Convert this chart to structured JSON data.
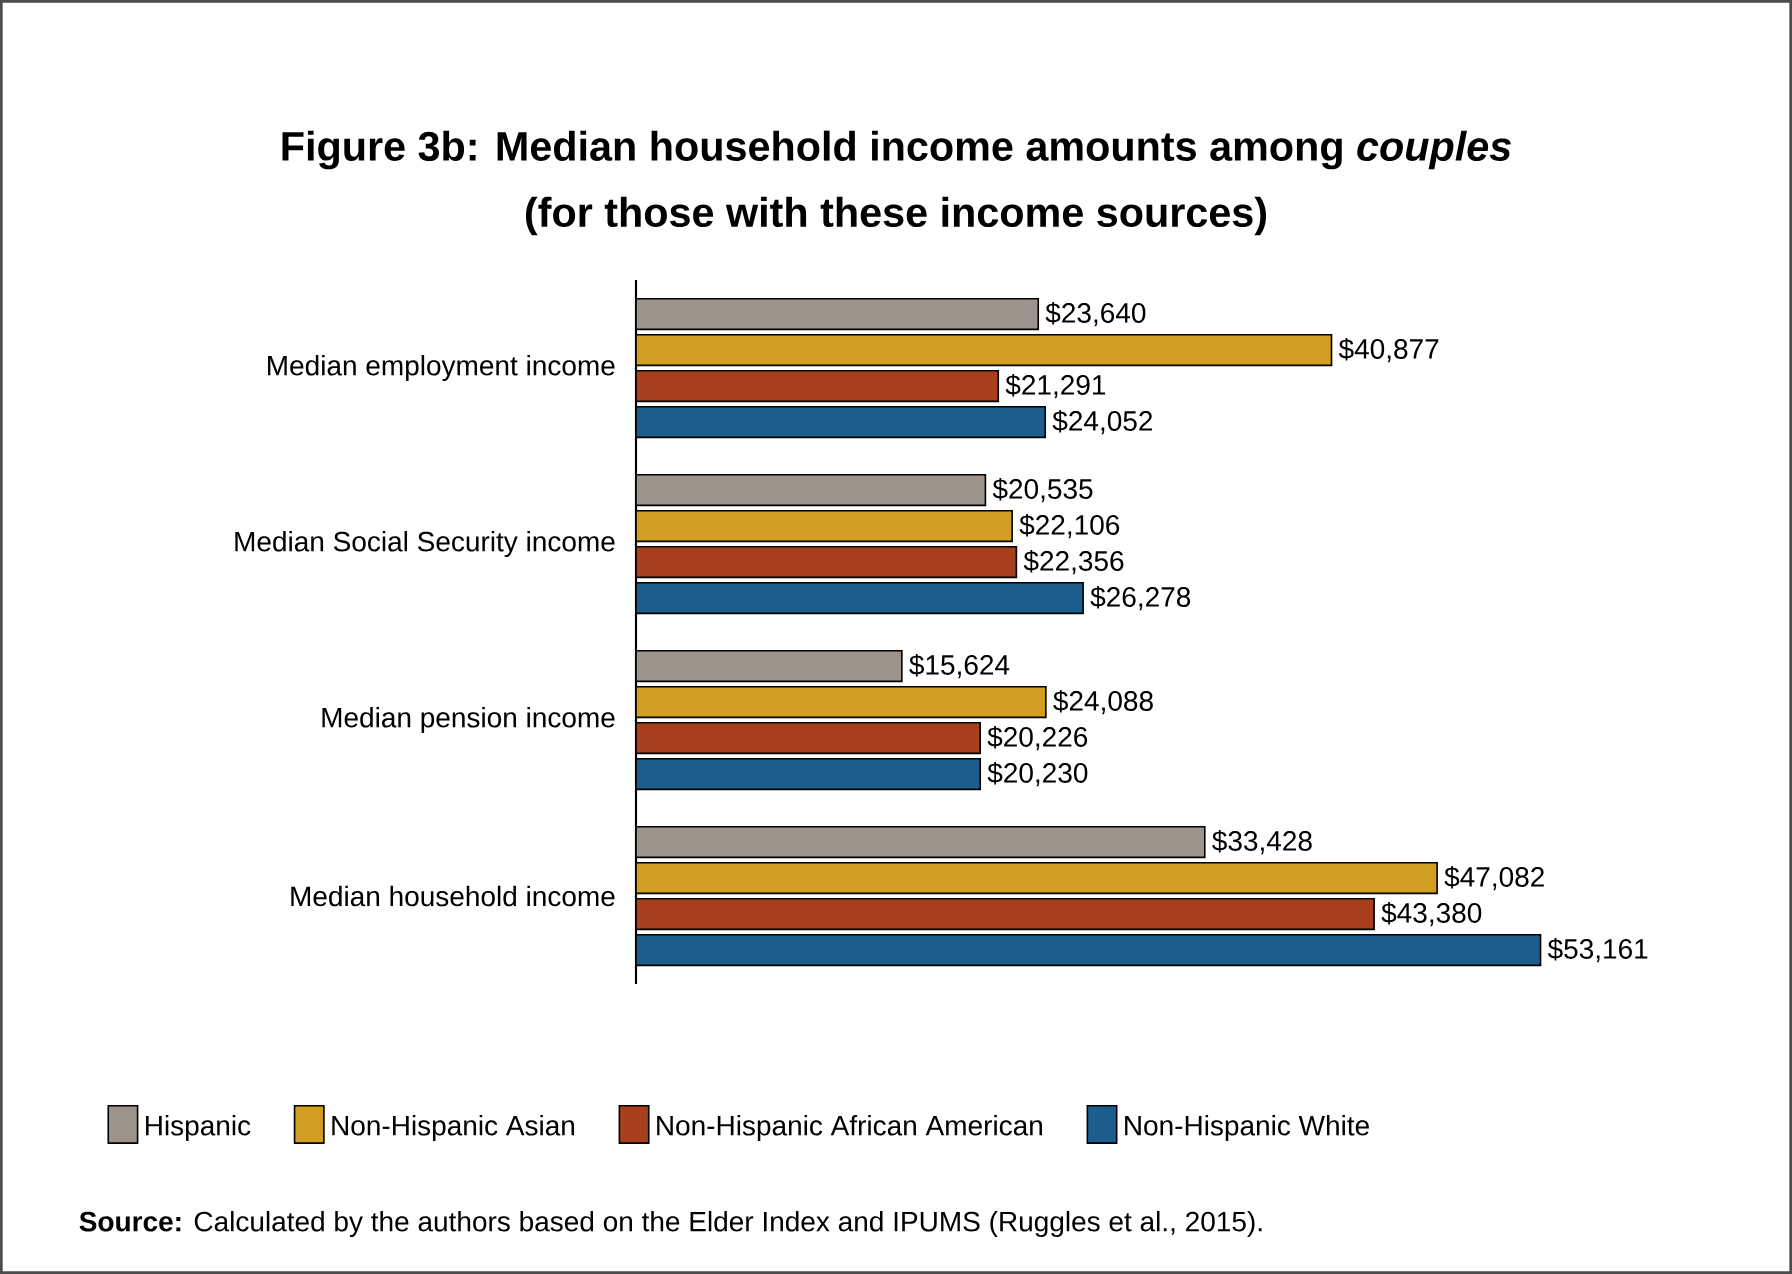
{
  "chart_data": {
    "type": "bar",
    "orientation": "horizontal",
    "title": "Figure 3b: Median household income amounts among *couples*",
    "subtitle": "(for those with these income sources)",
    "categories": [
      "Median employment income",
      "Median Social Security income",
      "Median pension income",
      "Median household income"
    ],
    "series": [
      {
        "name": "Hispanic",
        "color": "#9c938a",
        "values": [
          23640,
          20535,
          15624,
          33428
        ],
        "value_labels": [
          "$23,640",
          "$20,535",
          "$15,624",
          "$33,428"
        ]
      },
      {
        "name": "Non-Hispanic Asian",
        "color": "#d19e22",
        "values": [
          40877,
          22106,
          24088,
          47082
        ],
        "value_labels": [
          "$40,877",
          "$22,106",
          "$24,088",
          "$47,082"
        ]
      },
      {
        "name": "Non-Hispanic African American",
        "color": "#a8401e",
        "values": [
          21291,
          22356,
          20226,
          43380
        ],
        "value_labels": [
          "$21,291",
          "$22,356",
          "$20,226",
          "$43,380"
        ]
      },
      {
        "name": "Non-Hispanic White",
        "color": "#1b5e8e",
        "values": [
          24052,
          26278,
          20230,
          53161
        ],
        "value_labels": [
          "$24,052",
          "$26,278",
          "$20,230",
          "$53,161"
        ]
      }
    ],
    "tick_labels": "y",
    "legend": "bottom",
    "annotations": [
      "**Source:** Calculated by the authors based on the Elder Index and IPUMS (Ruggles et al., 2015)."
    ]
  }
}
